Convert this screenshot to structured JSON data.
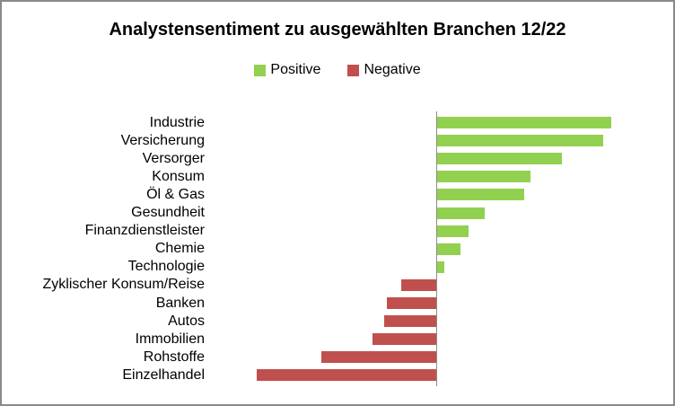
{
  "window": {
    "background": "#ffffff",
    "border_color": "#8a8a8a"
  },
  "chart_data": {
    "type": "bar",
    "orientation": "horizontal",
    "title": "Analystensentiment zu ausgewählten Branchen 12/22",
    "legend_position": "top-center",
    "legend": {
      "positive": {
        "label": "Positive",
        "color": "#92D050"
      },
      "negative": {
        "label": "Negative",
        "color": "#C0504D"
      }
    },
    "grid": false,
    "axis_tick_labels": false,
    "baseline": 0,
    "axis_line_color": "#8c8c8c",
    "categories": [
      "Industrie",
      "Versicherung",
      "Versorger",
      "Konsum",
      "Öl & Gas",
      "Gesundheit",
      "Finanzdienstleister",
      "Chemie",
      "Technologie",
      "Zyklischer Konsum/Reise",
      "Banken",
      "Autos",
      "Immobilien",
      "Rohstoffe",
      "Einzelhandel"
    ],
    "values": [
      194,
      185,
      139,
      104,
      97,
      53,
      35,
      26,
      8,
      -39,
      -55,
      -58,
      -71,
      -128,
      -200
    ],
    "value_note": "relative bar lengths (screen px); chart shows no numeric axis labels"
  }
}
